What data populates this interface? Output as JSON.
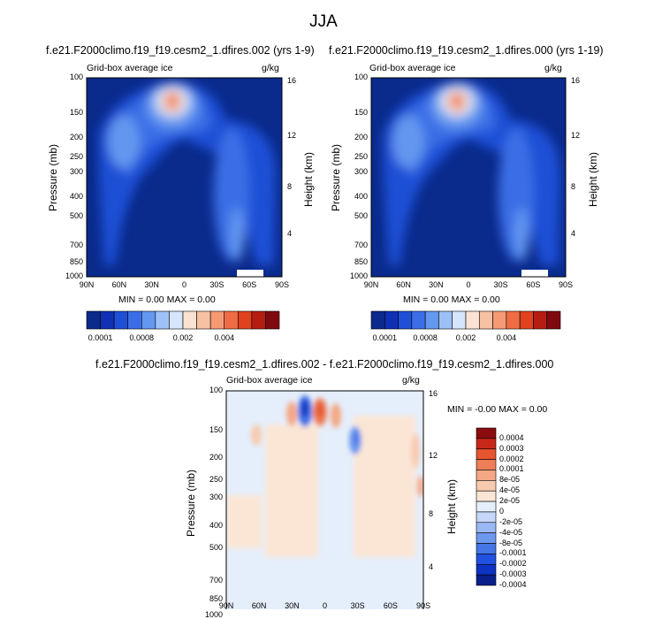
{
  "figure": {
    "title": "JJA"
  },
  "colors": {
    "palette_abs": [
      "#0a2a8c",
      "#1031b5",
      "#1f4fd6",
      "#3b6ee6",
      "#6497ef",
      "#9dc0f7",
      "#d5e6fb",
      "#fbe2d2",
      "#f7c1a3",
      "#f59a73",
      "#ef6c45",
      "#e0411f",
      "#b51d13",
      "#7e0a10"
    ],
    "palette_diff": [
      "#0a1f8a",
      "#0e33c2",
      "#2151e0",
      "#4575e6",
      "#6e98ee",
      "#9ab8f4",
      "#c5d7f8",
      "#e5eefb",
      "#fbe6d6",
      "#f7cbb0",
      "#f4a784",
      "#ef7e58",
      "#e5552f",
      "#c8281a",
      "#8a0c10"
    ]
  },
  "chart_data": [
    {
      "type": "heatmap",
      "title": "f.e21.F2000climo.f19_f19.cesm2_1.dfires.002 (yrs 1-9)",
      "left_label": "Grid-box average ice",
      "right_label": "g/kg",
      "ylabel": "Pressure (mb)",
      "ylabel_right": "Height (km)",
      "x_ticks": [
        "90N",
        "60N",
        "30N",
        "0",
        "30S",
        "60S",
        "90S"
      ],
      "y_ticks": [
        "100",
        "150",
        "200",
        "250",
        "300",
        "400",
        "500",
        "700",
        "850",
        "1000"
      ],
      "y_ticks_right": [
        "16",
        "12",
        "8",
        "4"
      ],
      "stats": "MIN =   0.00   MAX =   0.00",
      "colorbar_labels": [
        "0.0001",
        "0.0008",
        "0.002",
        "0.004"
      ],
      "ylog": true,
      "ylim": [
        1000,
        100
      ]
    },
    {
      "type": "heatmap",
      "title": "f.e21.F2000climo.f19_f19.cesm2_1.dfires.000 (yrs 1-19)",
      "left_label": "Grid-box average ice",
      "right_label": "g/kg",
      "ylabel": "Pressure (mb)",
      "ylabel_right": "Height (km)",
      "x_ticks": [
        "90N",
        "60N",
        "30N",
        "0",
        "30S",
        "60S",
        "90S"
      ],
      "y_ticks": [
        "100",
        "150",
        "200",
        "250",
        "300",
        "400",
        "500",
        "700",
        "850",
        "1000"
      ],
      "y_ticks_right": [
        "16",
        "12",
        "8",
        "4"
      ],
      "stats": "MIN =   0.00   MAX =   0.00",
      "colorbar_labels": [
        "0.0001",
        "0.0008",
        "0.002",
        "0.004"
      ],
      "ylog": true,
      "ylim": [
        1000,
        100
      ]
    },
    {
      "type": "heatmap",
      "title": "f.e21.F2000climo.f19_f19.cesm2_1.dfires.002 - f.e21.F2000climo.f19_f19.cesm2_1.dfires.000",
      "left_label": "Grid-box average ice",
      "right_label": "g/kg",
      "ylabel": "Pressure (mb)",
      "ylabel_right": "Height (km)",
      "x_ticks": [
        "90N",
        "60N",
        "30N",
        "0",
        "30S",
        "60S",
        "90S"
      ],
      "y_ticks": [
        "100",
        "150",
        "200",
        "250",
        "300",
        "400",
        "500",
        "700",
        "850",
        "1000"
      ],
      "y_ticks_right": [
        "16",
        "12",
        "8",
        "4"
      ],
      "stats": "MIN =  -0.00   MAX =   0.00",
      "colorbar_labels": [
        "0.0004",
        "0.0003",
        "0.0002",
        "0.0001",
        "8e-05",
        "4e-05",
        "2e-05",
        "0",
        "-2e-05",
        "-4e-05",
        "-8e-05",
        "-0.0001",
        "-0.0002",
        "-0.0003",
        "-0.0004"
      ],
      "ylog": true,
      "ylim": [
        1000,
        100
      ]
    }
  ]
}
